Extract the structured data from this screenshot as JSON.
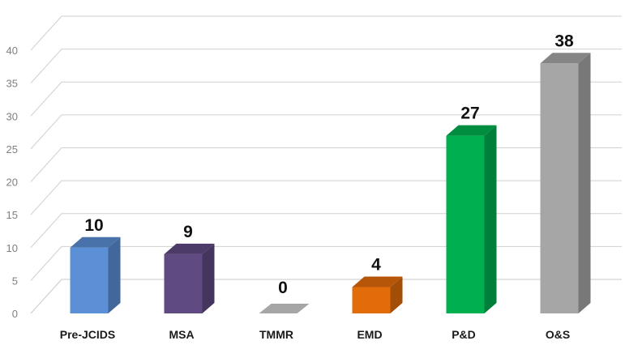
{
  "chart_data": {
    "type": "bar",
    "title": "",
    "xlabel": "",
    "ylabel": "",
    "ylim": [
      0,
      40
    ],
    "yticks": [
      0,
      5,
      10,
      15,
      20,
      25,
      30,
      35,
      40
    ],
    "grid": true,
    "legend": "none",
    "three_d": true,
    "categories": [
      "Pre-JCIDS",
      "MSA",
      "TMMR",
      "EMD",
      "P&D",
      "O&S"
    ],
    "values": [
      10,
      9,
      0,
      4,
      27,
      38
    ],
    "data_labels": [
      "10",
      "9",
      "0",
      "4",
      "27",
      "38"
    ],
    "colors": [
      "#5b8fd6",
      "#5f4a82",
      "#a6a6a6",
      "#e36c0a",
      "#00b050",
      "#a6a6a6"
    ]
  }
}
